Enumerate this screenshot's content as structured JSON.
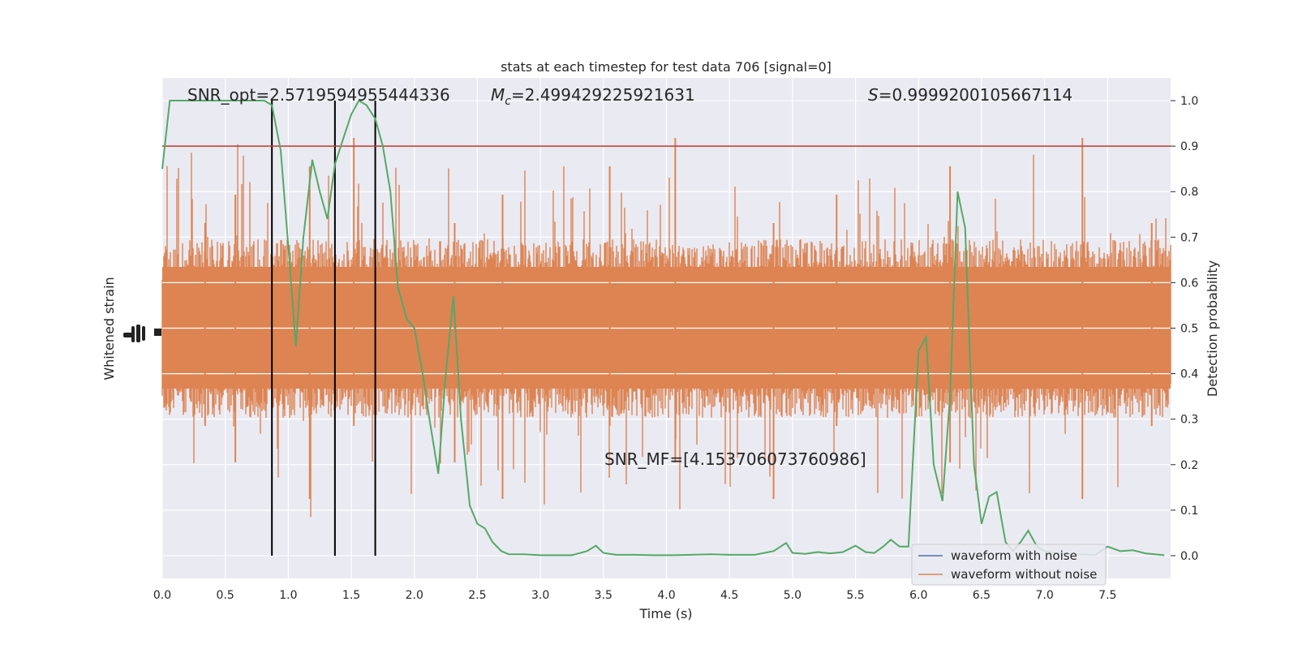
{
  "chart_data": {
    "type": "line",
    "title": "stats at each timestep for test data 706 [signal=0]",
    "xlabel": "Time (s)",
    "ylabel_left": "Whitened strain",
    "ylabel_right": "Detection probability",
    "xlim": [
      0,
      8.0
    ],
    "ylim_right": [
      -0.05,
      1.05
    ],
    "x_ticks": [
      "0.0",
      "0.5",
      "1.0",
      "1.5",
      "2.0",
      "2.5",
      "3.0",
      "3.5",
      "4.0",
      "4.5",
      "5.0",
      "5.5",
      "6.0",
      "6.5",
      "7.0",
      "7.5"
    ],
    "y_ticks_right": [
      "0.0",
      "0.1",
      "0.2",
      "0.3",
      "0.4",
      "0.5",
      "0.6",
      "0.7",
      "0.8",
      "0.9",
      "1.0"
    ],
    "grid": true,
    "threshold": {
      "value": 0.9,
      "color": "#c0392b"
    },
    "vertical_markers": [
      0.87,
      1.37,
      1.69
    ],
    "annotations": {
      "snr_opt": "SNR_opt=2.5719594955444336",
      "mc": "=2.499429225921631",
      "s": "=0.9999200105667114",
      "snr_mf": "SNR_MF=[4.153706073760986]"
    },
    "series": [
      {
        "name": "waveform with noise",
        "color": "#4c72b0"
      },
      {
        "name": "waveform without noise",
        "color": "#dd8452"
      },
      {
        "color": "#55a868",
        "x": [
          0,
          0.06,
          0.12,
          0.19,
          0.25,
          0.31,
          0.37,
          0.44,
          0.5,
          0.56,
          0.62,
          0.69,
          0.75,
          0.81,
          0.87,
          0.94,
          1.0,
          1.06,
          1.12,
          1.19,
          1.25,
          1.31,
          1.37,
          1.44,
          1.5,
          1.56,
          1.62,
          1.69,
          1.75,
          1.81,
          1.87,
          1.94,
          2.0,
          2.06,
          2.12,
          2.19,
          2.25,
          2.31,
          2.37,
          2.44,
          2.5,
          2.56,
          2.62,
          2.69,
          2.75,
          2.81,
          2.87,
          2.94,
          3.0,
          3.1,
          3.25,
          3.37,
          3.44,
          3.5,
          3.6,
          3.75,
          3.9,
          4.05,
          4.2,
          4.35,
          4.5,
          4.7,
          4.85,
          4.95,
          5.0,
          5.1,
          5.2,
          5.3,
          5.4,
          5.5,
          5.58,
          5.65,
          5.72,
          5.78,
          5.85,
          5.92,
          6.0,
          6.06,
          6.12,
          6.19,
          6.25,
          6.31,
          6.37,
          6.44,
          6.5,
          6.56,
          6.62,
          6.69,
          6.75,
          6.81,
          6.87,
          6.94,
          7.0,
          7.1,
          7.25,
          7.4,
          7.5,
          7.6,
          7.7,
          7.8,
          7.95
        ],
        "values": [
          0.85,
          1.0,
          1.0,
          1.0,
          1.0,
          1.0,
          1.0,
          1.0,
          1.0,
          1.0,
          1.0,
          1.0,
          1.0,
          1.0,
          0.99,
          0.89,
          0.68,
          0.46,
          0.7,
          0.87,
          0.8,
          0.74,
          0.86,
          0.92,
          0.97,
          1.0,
          0.99,
          0.96,
          0.9,
          0.8,
          0.59,
          0.52,
          0.5,
          0.41,
          0.3,
          0.18,
          0.4,
          0.57,
          0.3,
          0.11,
          0.07,
          0.06,
          0.03,
          0.01,
          0.003,
          0.003,
          0.003,
          0.002,
          0.001,
          0.001,
          0.001,
          0.01,
          0.022,
          0.006,
          0.002,
          0.002,
          0.001,
          0.001,
          0.002,
          0.003,
          0.002,
          0.002,
          0.01,
          0.028,
          0.006,
          0.004,
          0.008,
          0.005,
          0.008,
          0.022,
          0.008,
          0.006,
          0.02,
          0.035,
          0.02,
          0.02,
          0.45,
          0.48,
          0.2,
          0.12,
          0.35,
          0.8,
          0.72,
          0.2,
          0.07,
          0.13,
          0.14,
          0.03,
          0.01,
          0.03,
          0.055,
          0.02,
          0.01,
          0.005,
          0.003,
          0.002,
          0.02,
          0.01,
          0.012,
          0.005,
          0.001
        ]
      }
    ]
  }
}
